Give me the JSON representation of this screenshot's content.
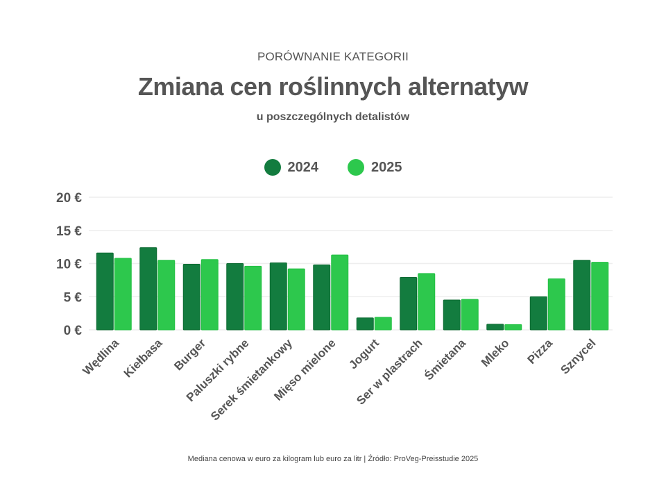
{
  "chart_data": {
    "type": "bar",
    "kicker": "PORÓWNANIE KATEGORII",
    "title": "Zmiana cen roślinnych alternatyw",
    "subtitle": "u poszczególnych detalistów",
    "categories": [
      "Wędlina",
      "Kiełbasa",
      "Burger",
      "Paluszki rybne",
      "Serek śmietankowy",
      "Mięso mielone",
      "Jogurt",
      "Ser w plastrach",
      "Śmietana",
      "Mleko",
      "Pizza",
      "Sznycel"
    ],
    "series": [
      {
        "name": "2024",
        "color": "#137c3f",
        "values": [
          11.6,
          12.4,
          9.9,
          10.0,
          10.1,
          9.8,
          1.8,
          7.9,
          4.5,
          0.85,
          5.0,
          10.5
        ]
      },
      {
        "name": "2025",
        "color": "#2dc84d",
        "values": [
          10.8,
          10.5,
          10.6,
          9.6,
          9.2,
          11.3,
          1.9,
          8.5,
          4.6,
          0.8,
          7.7,
          10.2
        ]
      }
    ],
    "ylim": [
      0,
      20
    ],
    "yticks": [
      0,
      5,
      10,
      15,
      20
    ],
    "ytick_labels": [
      "0 €",
      "5 €",
      "10 €",
      "15 €",
      "20 €"
    ],
    "grid": true,
    "legend": "top-center",
    "footer": "Mediana cenowa w euro za kilogram lub euro za litr | Źródło: ProVeg-Preisstudie 2025"
  }
}
